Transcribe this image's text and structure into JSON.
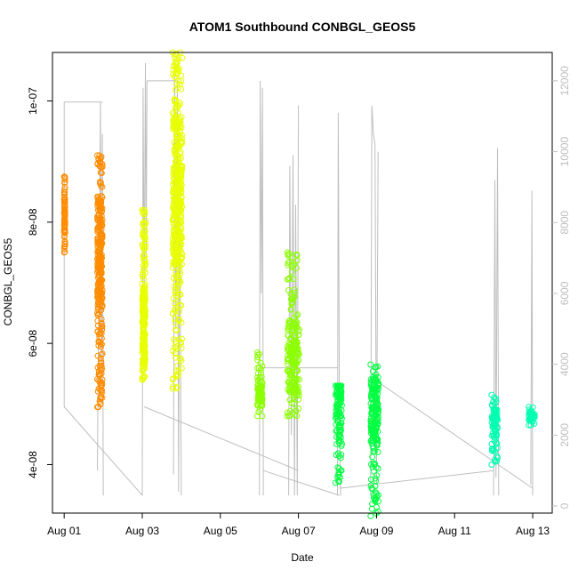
{
  "chart_data": {
    "type": "scatter",
    "title": "ATOM1 Southbound CONBGL_GEOS5",
    "xlabel": "Date",
    "ylabel": "CONBGL_GEOS5",
    "x_ticks": [
      "Aug 01",
      "Aug 03",
      "Aug 05",
      "Aug 07",
      "Aug 09",
      "Aug 11",
      "Aug 13"
    ],
    "x_tick_days": [
      1,
      3,
      5,
      7,
      9,
      11,
      13
    ],
    "xlim": [
      0.7,
      13.5
    ],
    "ylim": [
      3.2e-08,
      1.08e-07
    ],
    "y_ticks": [
      4e-08,
      6e-08,
      8e-08,
      1e-07
    ],
    "y_tick_labels": [
      "4e-08",
      "6e-08",
      "8e-08",
      "1e-07"
    ],
    "y2_ticks": [
      0,
      2000,
      4000,
      6000,
      8000,
      10000,
      12000
    ],
    "y2_tick_labels": [
      "0",
      "2000",
      "4000",
      "6000",
      "8000",
      "10000",
      "12000"
    ],
    "y2lim": [
      -200,
      12800
    ],
    "secondary_series": {
      "color": "#bebebe",
      "flights": [
        {
          "x": [
            1.0,
            1.0,
            1.0,
            1.0,
            1.0,
            1.0
          ],
          "y": [
            11400,
            11400,
            11000,
            9000,
            7000,
            2800
          ]
        },
        {
          "x": [
            1.85,
            1.87,
            1.9,
            1.93,
            1.96,
            1.98,
            2.0
          ],
          "y": [
            1000,
            4000,
            7000,
            11400,
            4000,
            10500,
            300
          ]
        },
        {
          "x": [
            3.0,
            3.02,
            3.05,
            3.08,
            3.1,
            3.12
          ],
          "y": [
            300,
            11800,
            6000,
            12500,
            7000,
            12000
          ]
        },
        {
          "x": [
            3.8,
            3.83,
            3.86,
            3.9,
            3.93,
            3.96,
            4.0
          ],
          "y": [
            900,
            12500,
            5000,
            12000,
            400,
            9000,
            300
          ]
        },
        {
          "x": [
            6.0,
            6.02,
            6.05,
            6.08,
            6.1
          ],
          "y": [
            300,
            12000,
            6000,
            11800,
            300
          ]
        },
        {
          "x": [
            6.75,
            6.78,
            6.82,
            6.86,
            6.9,
            6.93,
            6.97,
            7.0
          ],
          "y": [
            300,
            9600,
            2000,
            9900,
            300,
            8500,
            300,
            11300
          ]
        },
        {
          "x": [
            8.0,
            8.02,
            8.05,
            8.08
          ],
          "y": [
            300,
            11100,
            3000,
            300
          ]
        },
        {
          "x": [
            8.85,
            8.88,
            8.92,
            8.96,
            9.0,
            9.04
          ],
          "y": [
            300,
            11300,
            10500,
            10200,
            600,
            10000
          ]
        },
        {
          "x": [
            12.0,
            12.03,
            12.06,
            12.1,
            12.13
          ],
          "y": [
            300,
            9200,
            800,
            10100,
            300
          ]
        },
        {
          "x": [
            12.95,
            12.98,
            13.0
          ],
          "y": [
            600,
            8900,
            300
          ]
        }
      ],
      "connectors": [
        {
          "x": [
            1.0,
            1.98
          ],
          "y": [
            11400,
            11400
          ]
        },
        {
          "x": [
            1.0,
            3.0
          ],
          "y": [
            2800,
            300
          ]
        },
        {
          "x": [
            3.12,
            3.9
          ],
          "y": [
            12000,
            12000
          ]
        },
        {
          "x": [
            3.05,
            7.0
          ],
          "y": [
            2800,
            1000
          ]
        },
        {
          "x": [
            6.05,
            8.0
          ],
          "y": [
            3900,
            3900
          ]
        },
        {
          "x": [
            6.1,
            8.05
          ],
          "y": [
            1000,
            300
          ]
        },
        {
          "x": [
            8.05,
            12.0
          ],
          "y": [
            500,
            1000
          ]
        },
        {
          "x": [
            9.04,
            13.0
          ],
          "y": [
            3500,
            500
          ]
        }
      ]
    },
    "series": [
      {
        "color": "#ff8c00",
        "segments": [
          {
            "x0": 1.0,
            "x1": 1.02,
            "ymin": 7.5e-08,
            "ymax": 8.75e-08,
            "dense": 8.1e-08
          },
          {
            "x0": 1.85,
            "x1": 1.98,
            "ymin": 4.95e-08,
            "ymax": 9.1e-08,
            "dense": 7.5e-08
          }
        ]
      },
      {
        "color": "#e8ff00",
        "segments": [
          {
            "x0": 3.0,
            "x1": 3.08,
            "ymin": 5.4e-08,
            "ymax": 8.2e-08,
            "dense": 6.3e-08
          },
          {
            "x0": 3.78,
            "x1": 4.02,
            "ymin": 5.25e-08,
            "ymax": 1.08e-07,
            "dense": 8.5e-08
          }
        ]
      },
      {
        "color": "#8cff00",
        "segments": [
          {
            "x0": 5.95,
            "x1": 6.08,
            "ymin": 4.8e-08,
            "ymax": 5.85e-08,
            "dense": 5.2e-08
          },
          {
            "x0": 6.72,
            "x1": 7.02,
            "ymin": 4.8e-08,
            "ymax": 7.5e-08,
            "dense": 5.8e-08
          }
        ]
      },
      {
        "color": "#00ff40",
        "segments": [
          {
            "x0": 7.95,
            "x1": 8.12,
            "ymin": 3.7e-08,
            "ymax": 5.3e-08,
            "dense": 5e-08
          },
          {
            "x0": 8.85,
            "x1": 9.05,
            "ymin": 3.15e-08,
            "ymax": 5.65e-08,
            "dense": 4.9e-08
          }
        ]
      },
      {
        "color": "#00ffb0",
        "segments": [
          {
            "x0": 11.95,
            "x1": 12.1,
            "ymin": 4e-08,
            "ymax": 5.15e-08,
            "dense": 4.7e-08
          },
          {
            "x0": 12.9,
            "x1": 13.05,
            "ymin": 4.65e-08,
            "ymax": 4.95e-08,
            "dense": 4.8e-08
          }
        ]
      }
    ]
  }
}
